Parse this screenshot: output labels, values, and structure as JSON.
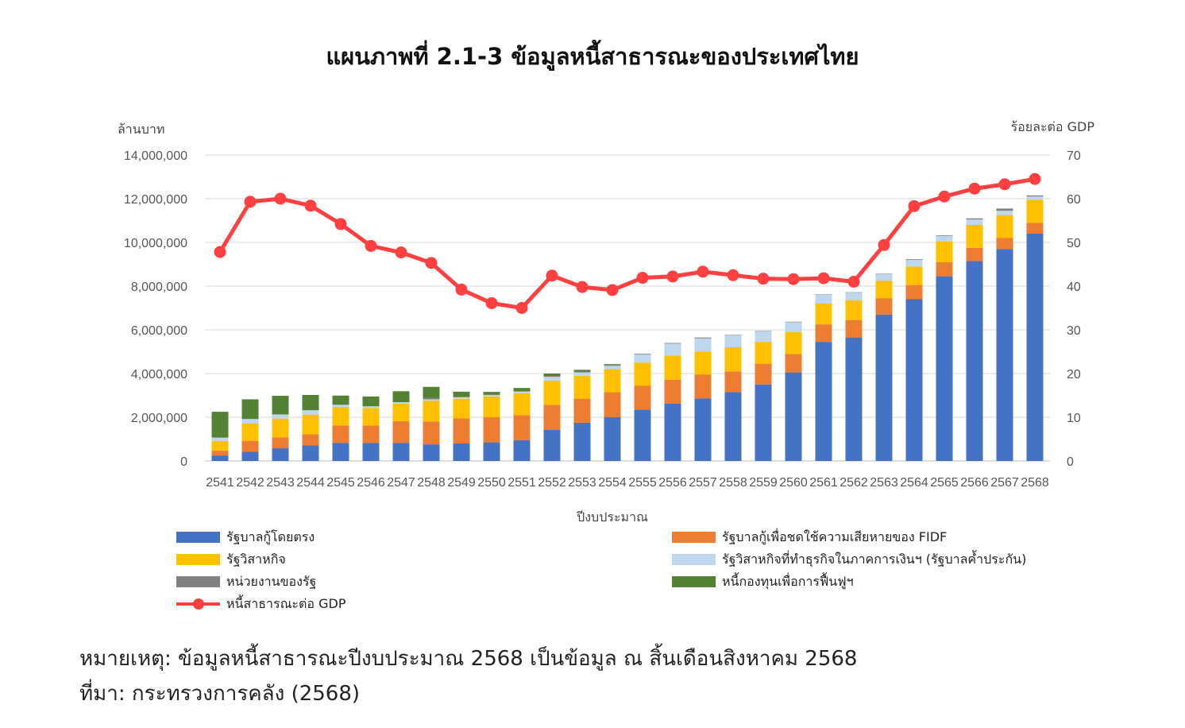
{
  "title": "แผนภาพที่ 2.1-3 ข้อมูลหนี้สาธารณะของประเทศไทย",
  "note": "หมายเหตุ: ข้อมูลหนี้สาธารณะปีงบประมาณ 2568 เป็นข้อมูล ณ สิ้นเดือนสิงหาคม 2568",
  "source": "ที่มา: กระทรวงการคลัง (2568)",
  "chart_data": {
    "type": "bar",
    "stacked": true,
    "title": "แผนภาพที่ 2.1-3 ข้อมูลหนี้สาธารณะของประเทศไทย",
    "xlabel": "ปีงบประมาณ",
    "ylabel": "ล้านบาท",
    "y2label": "ร้อยละต่อ GDP",
    "ylim": [
      0,
      14000000
    ],
    "y2lim": [
      0,
      70
    ],
    "yticks": [
      0,
      2000000,
      4000000,
      6000000,
      8000000,
      10000000,
      12000000,
      14000000
    ],
    "ytick_labels": [
      "0",
      "2,000,000",
      "4,000,000",
      "6,000,000",
      "8,000,000",
      "10,000,000",
      "12,000,000",
      "14,000,000"
    ],
    "y2ticks": [
      0,
      10,
      20,
      30,
      40,
      50,
      60,
      70
    ],
    "y2tick_labels": [
      "0",
      "10",
      "20",
      "30",
      "40",
      "50",
      "60",
      "70"
    ],
    "grid": true,
    "legend_position": "bottom",
    "categories": [
      "2541",
      "2542",
      "2543",
      "2544",
      "2545",
      "2546",
      "2547",
      "2548",
      "2549",
      "2550",
      "2551",
      "2552",
      "2553",
      "2554",
      "2555",
      "2556",
      "2557",
      "2558",
      "2559",
      "2560",
      "2561",
      "2562",
      "2563",
      "2564",
      "2565",
      "2566",
      "2567",
      "2568"
    ],
    "series": [
      {
        "name": "รัฐบาลกู้โดยตรง",
        "color": "#4472c4",
        "values": [
          250000,
          420000,
          580000,
          720000,
          820000,
          820000,
          820000,
          760000,
          800000,
          850000,
          950000,
          1420000,
          1750000,
          2000000,
          2350000,
          2620000,
          2860000,
          3150000,
          3500000,
          4050000,
          5450000,
          5650000,
          6700000,
          7400000,
          8450000,
          9150000,
          9700000,
          10400000
        ]
      },
      {
        "name": "รัฐบาลกู้เพื่อชดใช้ความเสียหายของ FIDF",
        "color": "#ed7d31",
        "values": [
          220000,
          500000,
          500000,
          500000,
          800000,
          800000,
          1000000,
          1050000,
          1150000,
          1150000,
          1150000,
          1150000,
          1100000,
          1150000,
          1100000,
          1100000,
          1100000,
          950000,
          950000,
          850000,
          800000,
          800000,
          750000,
          650000,
          650000,
          600000,
          500000,
          500000
        ]
      },
      {
        "name": "รัฐวิสาหกิจ",
        "color": "#ffc000",
        "values": [
          450000,
          800000,
          850000,
          900000,
          850000,
          800000,
          800000,
          950000,
          900000,
          950000,
          1000000,
          1100000,
          1050000,
          1050000,
          1050000,
          1100000,
          1050000,
          1100000,
          1000000,
          1000000,
          950000,
          900000,
          800000,
          850000,
          950000,
          1050000,
          1050000,
          1050000
        ]
      },
      {
        "name": "รัฐวิสาหกิจที่ทำธุรกิจในภาคการเงินฯ (รัฐบาลค้ำประกัน)",
        "color": "#bdd7ee",
        "values": [
          150000,
          200000,
          200000,
          200000,
          100000,
          80000,
          70000,
          60000,
          60000,
          60000,
          70000,
          180000,
          150000,
          150000,
          380000,
          550000,
          600000,
          550000,
          480000,
          450000,
          400000,
          350000,
          300000,
          300000,
          250000,
          250000,
          200000,
          150000
        ]
      },
      {
        "name": "หน่วยงานของรัฐ",
        "color": "#808080",
        "values": [
          0,
          0,
          0,
          0,
          0,
          0,
          0,
          70000,
          30000,
          20000,
          20000,
          40000,
          40000,
          40000,
          30000,
          30000,
          40000,
          20000,
          20000,
          20000,
          20000,
          20000,
          20000,
          30000,
          30000,
          50000,
          100000,
          50000
        ]
      },
      {
        "name": "หนี้กองทุนเพื่อการฟื้นฟูฯ",
        "color": "#548235",
        "values": [
          1180000,
          900000,
          850000,
          700000,
          420000,
          450000,
          500000,
          500000,
          230000,
          130000,
          150000,
          110000,
          80000,
          40000,
          0,
          0,
          0,
          0,
          0,
          0,
          0,
          0,
          0,
          0,
          0,
          0,
          0,
          0
        ]
      }
    ],
    "line_series": {
      "name": "หนี้สาธารณะต่อ GDP",
      "color": "#ff4040",
      "axis": "right",
      "values": [
        47.8,
        59.3,
        60.0,
        58.4,
        54.2,
        49.2,
        47.7,
        45.3,
        39.2,
        36.1,
        35.0,
        42.4,
        39.8,
        39.1,
        41.9,
        42.2,
        43.3,
        42.5,
        41.7,
        41.6,
        41.8,
        41.0,
        49.4,
        58.3,
        60.5,
        62.3,
        63.3,
        64.5
      ]
    }
  }
}
